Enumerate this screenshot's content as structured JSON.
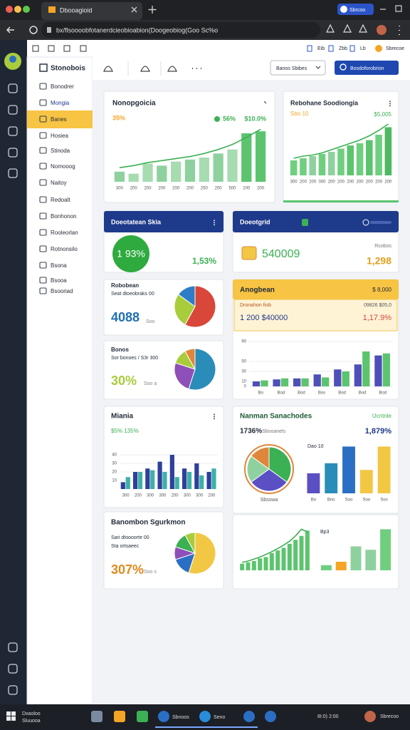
{
  "browser": {
    "tab_title": "Dbooagioid",
    "url": "bx/flsoooobfotanerdcieobioabion(Doogeobiog(Goo Sc%o",
    "profile": "Sbrcoo"
  },
  "toolbar": {
    "items": [
      "Eib",
      "Zbb",
      "Lb"
    ],
    "user": "Sbrecoe"
  },
  "nav": {
    "title": "Stonobois",
    "active": 2,
    "items": [
      "Bonodrer",
      "Mongia",
      "Banes",
      "Hosiea",
      "Stinoda",
      "Nomooog",
      "Naitoy",
      "Redoalt",
      "Bonhonon",
      "Rooleorlan",
      "Rotnonsilo",
      "Bsona",
      "Bsooa",
      "Bsooriad"
    ]
  },
  "header": {
    "dropdown": "Banos Sbibes",
    "button": "Bosdoforobrion"
  },
  "cards": [
    {
      "title": "Nonopgoicia",
      "stats": [
        "35%",
        "56%",
        "$10.0%"
      ],
      "categories": [
        "300",
        "200",
        "200",
        "200",
        "200",
        "200",
        "250",
        "200",
        "500",
        "200",
        "200"
      ],
      "values": [
        10,
        8,
        18,
        16,
        20,
        22,
        24,
        28,
        32,
        48,
        50
      ],
      "line": [
        14,
        16,
        19,
        21,
        23,
        25,
        28,
        32,
        37,
        44,
        52
      ],
      "ylim": [
        0,
        60
      ],
      "colors": [
        "#8fd19e",
        "#a6dcb0",
        "#a6dcb0",
        "#8fd19e",
        "#a6dcb0",
        "#8fd19e",
        "#a6dcb0",
        "#8fd19e",
        "#a6dcb0",
        "#5cc46e",
        "#5cc46e"
      ],
      "line_color": "#3bb054"
    },
    {
      "title": "Rebohane Soodiongia",
      "stats": [
        "Sbo 10",
        "$5,005"
      ],
      "categories": [
        "300",
        "200",
        "200",
        "000",
        "200",
        "200",
        "200",
        "200",
        "200",
        "200",
        "200"
      ],
      "values": [
        14,
        16,
        18,
        20,
        22,
        25,
        28,
        30,
        33,
        38,
        45
      ],
      "line": [
        16,
        18,
        19,
        21,
        24,
        27,
        30,
        33,
        37,
        42,
        48
      ],
      "ylim": [
        0,
        50
      ],
      "colors": [
        "#6fcf7f",
        "#6fcf7f",
        "#8fd19e",
        "#6fcf7f",
        "#8fd19e",
        "#6fcf7f",
        "#5cc46e",
        "#6fcf7f",
        "#5cc46e",
        "#6fcf7f",
        "#4fb862"
      ],
      "line_color": "#3bb054"
    },
    {
      "title": "Doeotatean Skia",
      "badge": "1 93%",
      "value": "1,53%"
    },
    {
      "title": "Doeotgrid",
      "value": "540009",
      "label": "Rcobos",
      "value2": "1,298"
    },
    {
      "title": "Robobean",
      "subtitle": "Seat dtoeobraks 00",
      "big": "4088",
      "small": "Soo",
      "pie": [
        58,
        27,
        15
      ],
      "colors": [
        "#d9463a",
        "#a8cc3c",
        "#2e7cc7"
      ]
    },
    {
      "title": "Anogbean",
      "header_right": "$ 8,000",
      "row1": [
        "Dronahon fiob",
        "09826 $05,0"
      ],
      "row2": [
        "1 200 $40000",
        "1,17.9%"
      ],
      "ylim": [
        0,
        100
      ],
      "yticks": [
        0,
        10,
        30,
        50,
        90
      ],
      "categories": [
        "Bo",
        "Bod",
        "Bod",
        "Bos",
        "Bod",
        "Bod",
        "Bod"
      ],
      "series": [
        {
          "color": "#4f4fb8",
          "values": [
            10,
            14,
            16,
            24,
            34,
            44,
            62
          ]
        },
        {
          "color": "#5cc46e",
          "values": [
            12,
            16,
            16,
            18,
            30,
            70,
            66
          ]
        }
      ]
    },
    {
      "title": "Bonos",
      "subtitle": "Sor bonoes / S3r 300",
      "big": "30%",
      "small": "Soo a",
      "pie": [
        55,
        25,
        12,
        8
      ],
      "colors": [
        "#2a8cb8",
        "#8e4fb8",
        "#a8cc3c",
        "#e0863a"
      ]
    },
    {
      "title": "Miania",
      "stats": "$5% 135%",
      "ylim": [
        0,
        50
      ],
      "yticks": [
        10,
        20,
        30,
        40
      ],
      "categories": [
        "300",
        "200",
        "300",
        "300",
        "200",
        "300",
        "300",
        "200"
      ],
      "series": [
        {
          "color": "#2f3f9c",
          "values": [
            8,
            20,
            24,
            32,
            40,
            24,
            30,
            20
          ]
        },
        {
          "color": "#3fb0a8",
          "values": [
            14,
            20,
            22,
            20,
            14,
            20,
            16,
            24
          ]
        }
      ]
    },
    {
      "title": "Nanman Sanachodes",
      "header_right": "Ucntnle",
      "stat": "1736%",
      "stat_label": "Sbooanels",
      "stat2": "1,879%",
      "pie": [
        35,
        30,
        20,
        15
      ],
      "pie_colors": [
        "#3bb054",
        "#5b4fc4",
        "#8fd19e",
        "#e0863a"
      ],
      "pie_label": "Sbsswa",
      "bar_label": "Dao 10",
      "categories": [
        "Bo",
        "Bno",
        "Soo",
        "Soo",
        "Sos"
      ],
      "values": [
        30,
        45,
        70,
        35,
        70
      ],
      "ylim": [
        0,
        80
      ],
      "colors": [
        "#5b4fc4",
        "#2a8cb8",
        "#2a6fc4",
        "#f2c744",
        "#f2c744"
      ]
    },
    {
      "title": "Banombon Sgurkmon",
      "subtitle": "Sari dtoooorte 00",
      "subtitle2": "Sta ortsaeec",
      "big": "307%",
      "small": "Soo s",
      "pie": [
        55,
        15,
        10,
        12,
        8
      ],
      "colors": [
        "#f2c744",
        "#2a6fc4",
        "#8e4fb8",
        "#3bb054",
        "#a8cc3c"
      ]
    },
    {
      "values": [
        10,
        12,
        14,
        18,
        20,
        26,
        30,
        34,
        40,
        46,
        52,
        60
      ],
      "line": [
        12,
        14,
        17,
        20,
        24,
        28,
        33,
        38,
        44,
        52,
        62,
        58
      ],
      "ylim": [
        0,
        70
      ],
      "color": "#5cc46e",
      "line_color": "#3bb054",
      "label": "Bp3",
      "values2": [
        6,
        10,
        28,
        24,
        48
      ],
      "ylim2": [
        0,
        50
      ],
      "colors2": [
        "#6fcf7f",
        "#f5a524",
        "#8fd19e",
        "#8fd19e",
        "#6fcf7f"
      ]
    }
  ],
  "taskbar": {
    "items": [
      "Dxaoloo",
      "Sluuooa",
      "Sbnoos",
      "Seno"
    ],
    "clock": "8I:0) 2:00",
    "user": "Sbrecoo"
  }
}
